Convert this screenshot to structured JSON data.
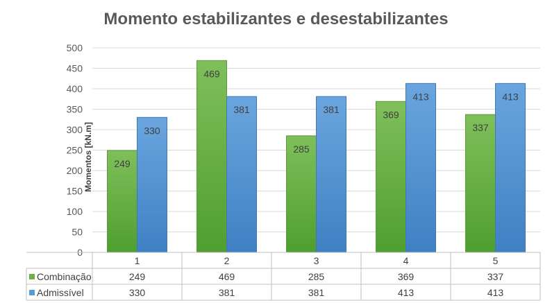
{
  "chart_data": {
    "type": "bar",
    "title": "Momento estabilizantes e desestabilizantes",
    "xlabel": "",
    "ylabel": "Momentos [kN.m]",
    "ylim": [
      0,
      500
    ],
    "yticks": [
      0,
      50,
      100,
      150,
      200,
      250,
      300,
      350,
      400,
      450,
      500
    ],
    "categories": [
      "1",
      "2",
      "3",
      "4",
      "5"
    ],
    "series": [
      {
        "name": "Combinação",
        "values": [
          249,
          469,
          285,
          369,
          337
        ],
        "color": "#70ad47"
      },
      {
        "name": "Admissível",
        "values": [
          330,
          381,
          381,
          413,
          413
        ],
        "color": "#5b9bd5"
      }
    ],
    "grid": true,
    "legend": "data-table"
  }
}
